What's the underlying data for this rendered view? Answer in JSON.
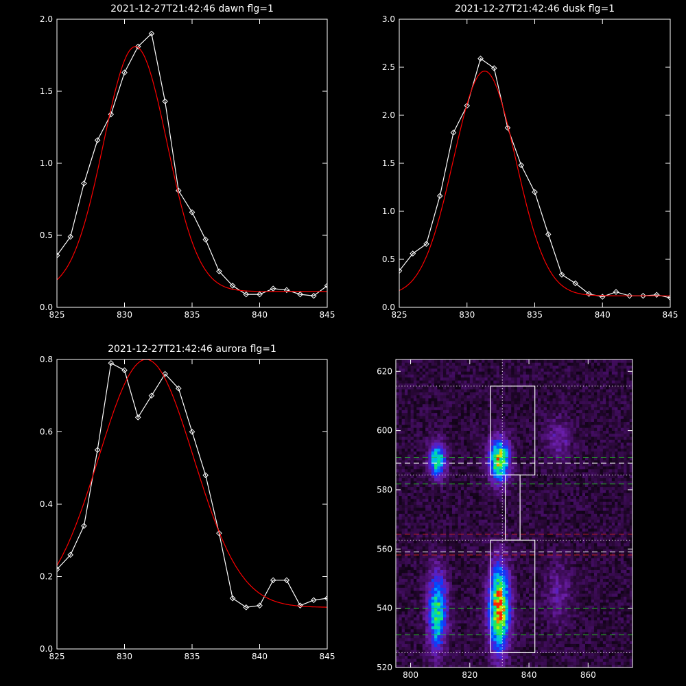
{
  "chart_data": [
    {
      "type": "line",
      "title": "2021-12-27T21:42:46 dawn flg=1",
      "xlim": [
        825,
        845
      ],
      "ylim": [
        0.0,
        2.0
      ],
      "xticks": [
        825,
        830,
        835,
        840,
        845
      ],
      "yticks": [
        "0.0",
        "0.5",
        "1.0",
        "1.5",
        "2.0"
      ],
      "series": [
        {
          "color": "#ffffff",
          "marker": "diamond",
          "x": [
            825,
            826,
            827,
            828,
            829,
            830,
            831,
            832,
            833,
            834,
            835,
            836,
            837,
            838,
            839,
            840,
            841,
            842,
            843,
            844,
            845
          ],
          "y": [
            0.36,
            0.49,
            0.86,
            1.16,
            1.34,
            1.63,
            1.81,
            1.9,
            1.43,
            0.81,
            0.66,
            0.47,
            0.25,
            0.15,
            0.09,
            0.09,
            0.13,
            0.12,
            0.09,
            0.08,
            0.15
          ]
        },
        {
          "color": "#ff0000",
          "fit": "gaussian",
          "amplitude": 1.7,
          "center": 830.8,
          "sigma": 2.35,
          "offset": 0.11
        }
      ]
    },
    {
      "type": "line",
      "title": "2021-12-27T21:42:46 dusk flg=1",
      "xlim": [
        825,
        845
      ],
      "ylim": [
        0.0,
        3.0
      ],
      "xticks": [
        825,
        830,
        835,
        840,
        845
      ],
      "yticks": [
        "0.0",
        "0.5",
        "1.0",
        "1.5",
        "2.0",
        "2.5",
        "3.0"
      ],
      "series": [
        {
          "color": "#ffffff",
          "marker": "diamond",
          "x": [
            825,
            826,
            827,
            828,
            829,
            830,
            831,
            832,
            833,
            834,
            835,
            836,
            837,
            838,
            839,
            840,
            841,
            842,
            843,
            844,
            845
          ],
          "y": [
            0.38,
            0.56,
            0.66,
            1.16,
            1.82,
            2.1,
            2.59,
            2.49,
            1.87,
            1.48,
            1.2,
            0.76,
            0.34,
            0.25,
            0.14,
            0.11,
            0.16,
            0.12,
            0.12,
            0.13,
            0.1
          ]
        },
        {
          "color": "#ff0000",
          "fit": "gaussian",
          "amplitude": 2.34,
          "center": 831.3,
          "sigma": 2.3,
          "offset": 0.12
        }
      ]
    },
    {
      "type": "line",
      "title": "2021-12-27T21:42:46 aurora flg=1",
      "xlim": [
        825,
        845
      ],
      "ylim": [
        0.0,
        0.8
      ],
      "xticks": [
        825,
        830,
        835,
        840,
        845
      ],
      "yticks": [
        "0.0",
        "0.2",
        "0.4",
        "0.6",
        "0.8"
      ],
      "series": [
        {
          "color": "#ffffff",
          "marker": "diamond",
          "x": [
            825,
            826,
            827,
            828,
            829,
            830,
            831,
            832,
            833,
            834,
            835,
            836,
            837,
            838,
            839,
            840,
            841,
            842,
            843,
            844,
            845
          ],
          "y": [
            0.22,
            0.26,
            0.34,
            0.55,
            0.79,
            0.77,
            0.64,
            0.7,
            0.76,
            0.72,
            0.6,
            0.48,
            0.32,
            0.14,
            0.115,
            0.12,
            0.19,
            0.19,
            0.12,
            0.135,
            0.14
          ]
        },
        {
          "color": "#ff0000",
          "fit": "gaussian",
          "amplitude": 0.685,
          "center": 831.6,
          "sigma": 3.5,
          "offset": 0.115
        }
      ]
    },
    {
      "type": "heatmap",
      "xlim": [
        795,
        875
      ],
      "ylim": [
        520,
        624
      ],
      "xticks": [
        800,
        820,
        840,
        860
      ],
      "yticks": [
        520,
        540,
        560,
        580,
        600,
        620
      ],
      "colormap": [
        "#000000",
        "#2a0838",
        "#4a0f6e",
        "#6a1ea8",
        "#4422dd",
        "#0044ff",
        "#00aaff",
        "#00ddaa",
        "#33ee33",
        "#ddee00",
        "#ff2200"
      ],
      "emission_spots": [
        {
          "x": 809,
          "y": 539,
          "sx": 2.2,
          "sy": 9,
          "peak": 0.7
        },
        {
          "x": 830,
          "y": 540,
          "sx": 2.4,
          "sy": 10,
          "peak": 1.0
        },
        {
          "x": 809,
          "y": 590,
          "sx": 2.0,
          "sy": 4,
          "peak": 0.7
        },
        {
          "x": 830,
          "y": 590,
          "sx": 2.4,
          "sy": 5,
          "peak": 0.85
        },
        {
          "x": 850,
          "y": 597,
          "sx": 3.0,
          "sy": 5,
          "peak": 0.2
        },
        {
          "x": 850,
          "y": 545,
          "sx": 3.0,
          "sy": 7,
          "peak": 0.18
        }
      ],
      "vertical_lines": [
        {
          "x": 831,
          "color": "#ffffff",
          "style": "dotted"
        }
      ],
      "horizontal_lines": [
        {
          "y": 615,
          "color": "#ffffff",
          "style": "dotted"
        },
        {
          "y": 525,
          "color": "#ffffff",
          "style": "dotted"
        },
        {
          "y": 585,
          "color": "#ffffff",
          "style": "dotted"
        },
        {
          "y": 563,
          "color": "#ffffff",
          "style": "dotted"
        },
        {
          "y": 591,
          "color": "#22cc22",
          "style": "dashed"
        },
        {
          "y": 582,
          "color": "#22cc22",
          "style": "dashed"
        },
        {
          "y": 540,
          "color": "#22cc22",
          "style": "dashed"
        },
        {
          "y": 531,
          "color": "#22cc22",
          "style": "dashed"
        },
        {
          "y": 589,
          "color": "#ffffff",
          "style": "dashed"
        },
        {
          "y": 559,
          "color": "#ffffff",
          "style": "dashed"
        },
        {
          "y": 565,
          "color": "#cc2222",
          "style": "dashed"
        },
        {
          "y": 558,
          "color": "#cc2222",
          "style": "dashed"
        }
      ],
      "boxes": [
        {
          "x0": 827,
          "x1": 842,
          "y0": 585,
          "y1": 615,
          "color": "#ffffff"
        },
        {
          "x0": 832,
          "x1": 837,
          "y0": 563,
          "y1": 585,
          "color": "#ffffff"
        },
        {
          "x0": 827,
          "x1": 842,
          "y0": 525,
          "y1": 563,
          "color": "#ffffff"
        }
      ]
    }
  ]
}
